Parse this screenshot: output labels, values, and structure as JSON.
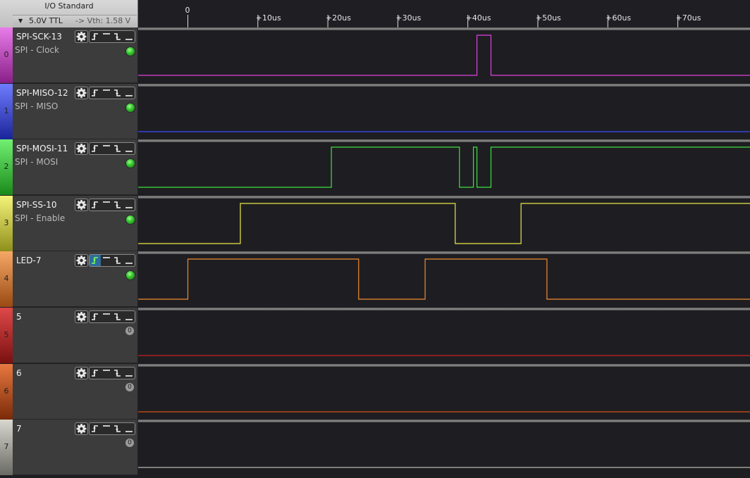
{
  "io_standard": {
    "title": "I/O Standard",
    "arrow_icon": "triangle-down",
    "value": "5.0V TTL",
    "vth": "-> Vth:  1.58 V"
  },
  "ruler": {
    "ticks": [
      "0",
      "+10us",
      "+20us",
      "+30us",
      "+40us",
      "+50us",
      "+60us",
      "+70us"
    ],
    "tick_times_us": [
      0,
      10,
      20,
      30,
      40,
      50,
      60,
      70
    ]
  },
  "channels": [
    {
      "number": "0",
      "name": "SPI-SCK-13",
      "description": "SPI - Clock",
      "status": "active",
      "status_text": "",
      "color": "#e040e0",
      "strip_top": "#e87ce8",
      "strip_bottom": "#8a1f8a",
      "initial": 0,
      "transitions_us": [
        41.3,
        43.3
      ],
      "trigger_active": false
    },
    {
      "number": "1",
      "name": "SPI-MISO-12",
      "description": "SPI - MISO",
      "status": "active",
      "status_text": "",
      "color": "#3c4cff",
      "strip_top": "#6f7cff",
      "strip_bottom": "#1a2499",
      "initial": 0,
      "transitions_us": [],
      "trigger_active": false
    },
    {
      "number": "2",
      "name": "SPI-MOSI-11",
      "description": "SPI - MOSI",
      "status": "active",
      "status_text": "",
      "color": "#3ee03e",
      "strip_top": "#72f072",
      "strip_bottom": "#1a8a1a",
      "initial": 0,
      "transitions_us": [
        20.5,
        38.8,
        40.8,
        41.3,
        43.3
      ],
      "trigger_active": false
    },
    {
      "number": "3",
      "name": "SPI-SS-10",
      "description": "SPI - Enable",
      "status": "active",
      "status_text": "",
      "color": "#e8e84a",
      "strip_top": "#f4f47a",
      "strip_bottom": "#8f8f1c",
      "initial": 0,
      "transitions_us": [
        7.5,
        38.2,
        47.6
      ],
      "trigger_active": false
    },
    {
      "number": "4",
      "name": "LED-7",
      "description": "",
      "status": "active",
      "status_text": "",
      "color": "#f08a30",
      "strip_top": "#f6a866",
      "strip_bottom": "#9a4a12",
      "initial": 0,
      "transitions_us": [
        0,
        24.4,
        33.9,
        51.3
      ],
      "trigger_active": true
    },
    {
      "number": "5",
      "name": "5",
      "description": "",
      "status": "zero",
      "status_text": "0",
      "color": "#c82020",
      "strip_top": "#e04848",
      "strip_bottom": "#7a1010",
      "initial": 0,
      "transitions_us": [],
      "trigger_active": false
    },
    {
      "number": "6",
      "name": "6",
      "description": "",
      "status": "zero",
      "status_text": "0",
      "color": "#d05018",
      "strip_top": "#e87840",
      "strip_bottom": "#7a2a08",
      "initial": 0,
      "transitions_us": [],
      "trigger_active": false
    },
    {
      "number": "7",
      "name": "7",
      "description": "",
      "status": "zero",
      "status_text": "0",
      "color": "#b8b8b0",
      "strip_top": "#d8d8d0",
      "strip_bottom": "#6a6a64",
      "initial": 0,
      "transitions_us": [],
      "trigger_active": false
    }
  ]
}
